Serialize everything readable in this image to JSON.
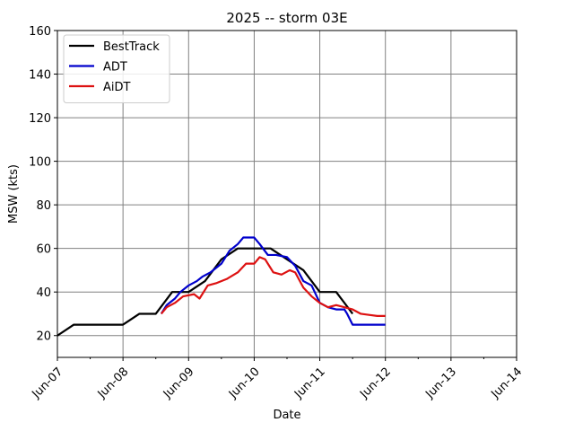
{
  "chart_data": {
    "type": "line",
    "title": "2025 -- storm 03E",
    "xlabel": "Date",
    "ylabel": "MSW (kts)",
    "x_ticks": [
      "Jun-07",
      "Jun-08",
      "Jun-09",
      "Jun-10",
      "Jun-11",
      "Jun-12",
      "Jun-13",
      "Jun-14"
    ],
    "y_ticks": [
      20,
      40,
      60,
      80,
      100,
      120,
      140,
      160
    ],
    "xlim": [
      "2025-06-07T00:00",
      "2025-06-14T00:00"
    ],
    "ylim": [
      10,
      160
    ],
    "grid": true,
    "legend_position": "top-left",
    "series": [
      {
        "name": "BestTrack",
        "color": "#000000",
        "x": [
          "2025-06-07T00:00",
          "2025-06-07T06:00",
          "2025-06-07T12:00",
          "2025-06-07T18:00",
          "2025-06-08T00:00",
          "2025-06-08T06:00",
          "2025-06-08T12:00",
          "2025-06-08T18:00",
          "2025-06-09T00:00",
          "2025-06-09T06:00",
          "2025-06-09T12:00",
          "2025-06-09T18:00",
          "2025-06-10T00:00",
          "2025-06-10T06:00",
          "2025-06-10T12:00",
          "2025-06-10T18:00",
          "2025-06-11T00:00",
          "2025-06-11T06:00",
          "2025-06-11T12:00"
        ],
        "values": [
          20,
          25,
          25,
          25,
          25,
          30,
          30,
          40,
          40,
          45,
          55,
          60,
          60,
          60,
          55,
          50,
          40,
          40,
          30
        ]
      },
      {
        "name": "ADT",
        "color": "#0000cc",
        "x": [
          "2025-06-08T14:00",
          "2025-06-08T16:00",
          "2025-06-08T19:00",
          "2025-06-08T21:00",
          "2025-06-09T00:00",
          "2025-06-09T03:00",
          "2025-06-09T05:00",
          "2025-06-09T08:00",
          "2025-06-09T12:00",
          "2025-06-09T15:00",
          "2025-06-09T18:00",
          "2025-06-09T20:00",
          "2025-06-10T00:00",
          "2025-06-10T02:00",
          "2025-06-10T05:00",
          "2025-06-10T08:00",
          "2025-06-10T12:00",
          "2025-06-10T15:00",
          "2025-06-10T18:00",
          "2025-06-10T21:00",
          "2025-06-11T00:00",
          "2025-06-11T03:00",
          "2025-06-11T06:00",
          "2025-06-11T09:00",
          "2025-06-11T10:00",
          "2025-06-11T12:00",
          "2025-06-11T16:00",
          "2025-06-12T00:00"
        ],
        "values": [
          30,
          34,
          37,
          40,
          43,
          45,
          47,
          49,
          53,
          59,
          62,
          65,
          65,
          62,
          57,
          57,
          56,
          52,
          45,
          43,
          35,
          33,
          32,
          32,
          30,
          25,
          25,
          25
        ]
      },
      {
        "name": "AiDT",
        "color": "#dd1111",
        "x": [
          "2025-06-08T14:00",
          "2025-06-08T16:00",
          "2025-06-08T19:00",
          "2025-06-08T22:00",
          "2025-06-09T02:00",
          "2025-06-09T04:00",
          "2025-06-09T07:00",
          "2025-06-09T10:00",
          "2025-06-09T14:00",
          "2025-06-09T18:00",
          "2025-06-09T21:00",
          "2025-06-10T00:00",
          "2025-06-10T02:00",
          "2025-06-10T04:00",
          "2025-06-10T07:00",
          "2025-06-10T10:00",
          "2025-06-10T13:00",
          "2025-06-10T15:00",
          "2025-06-10T18:00",
          "2025-06-10T21:00",
          "2025-06-11T00:00",
          "2025-06-11T03:00",
          "2025-06-11T06:00",
          "2025-06-11T09:00",
          "2025-06-11T12:00",
          "2025-06-11T15:00",
          "2025-06-11T18:00",
          "2025-06-11T21:00",
          "2025-06-12T00:00"
        ],
        "values": [
          30,
          33,
          35,
          38,
          39,
          37,
          43,
          44,
          46,
          49,
          53,
          53,
          56,
          55,
          49,
          48,
          50,
          49,
          42,
          38,
          35,
          33,
          34,
          33,
          32,
          30,
          29.5,
          29,
          29
        ]
      }
    ]
  }
}
